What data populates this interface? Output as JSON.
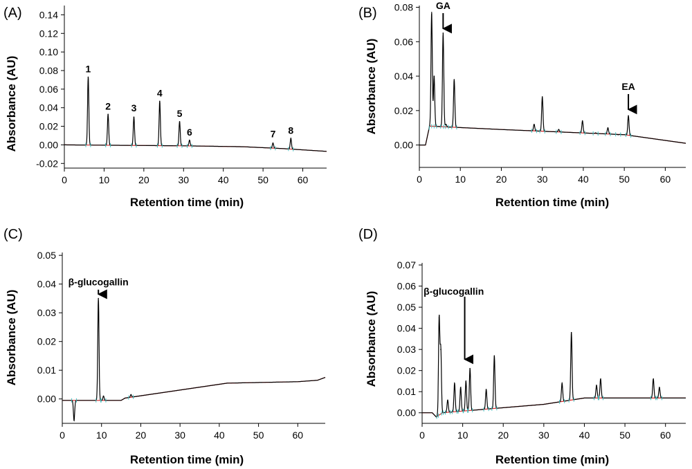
{
  "chart_data": [
    {
      "panel": "(A)",
      "type": "line",
      "xlabel": "Retention time (min)",
      "ylabel": "Absorbance (AU)",
      "xlim": [
        0,
        66
      ],
      "ylim": [
        -0.025,
        0.15
      ],
      "xticks": [
        0,
        10,
        20,
        30,
        40,
        50,
        60
      ],
      "yticks": [
        -0.02,
        0.0,
        0.02,
        0.04,
        0.06,
        0.08,
        0.1,
        0.12,
        0.14
      ],
      "ytick_labels": [
        "-0.02",
        "0.00",
        "0.02",
        "0.04",
        "0.06",
        "0.08",
        "0.10",
        "0.12",
        "0.14"
      ],
      "baseline": [
        [
          0,
          0.0
        ],
        [
          30,
          -0.001
        ],
        [
          45,
          -0.002
        ],
        [
          55,
          -0.004
        ],
        [
          66,
          -0.007
        ]
      ],
      "peaks": [
        {
          "x": 6.0,
          "y": 0.073,
          "label": "1"
        },
        {
          "x": 11.0,
          "y": 0.033,
          "label": "2"
        },
        {
          "x": 17.5,
          "y": 0.03,
          "label": "3"
        },
        {
          "x": 24.0,
          "y": 0.047,
          "label": "4"
        },
        {
          "x": 29.0,
          "y": 0.025,
          "label": "5"
        },
        {
          "x": 31.5,
          "y": 0.005,
          "label": "6"
        },
        {
          "x": 52.5,
          "y": 0.002,
          "label": "7"
        },
        {
          "x": 57.0,
          "y": 0.007,
          "label": "8"
        }
      ],
      "annotations": [
        {
          "text": "1",
          "x": 6.0,
          "y": 0.078
        },
        {
          "text": "2",
          "x": 11.0,
          "y": 0.038
        },
        {
          "text": "3",
          "x": 17.5,
          "y": 0.036
        },
        {
          "text": "4",
          "x": 24.0,
          "y": 0.052
        },
        {
          "text": "5",
          "x": 29.0,
          "y": 0.03
        },
        {
          "text": "6",
          "x": 31.5,
          "y": 0.01
        },
        {
          "text": "7",
          "x": 52.5,
          "y": 0.008
        },
        {
          "text": "8",
          "x": 57.0,
          "y": 0.012
        }
      ]
    },
    {
      "panel": "(B)",
      "type": "line",
      "xlabel": "Retention time (min)",
      "ylabel": "Absorbance (AU)",
      "xlim": [
        0,
        65
      ],
      "ylim": [
        -0.013,
        0.081
      ],
      "xticks": [
        0,
        10,
        20,
        30,
        40,
        50,
        60
      ],
      "yticks": [
        0.0,
        0.02,
        0.04,
        0.06,
        0.08
      ],
      "ytick_labels": [
        "0.00",
        "0.02",
        "0.04",
        "0.06",
        "0.08"
      ],
      "baseline": [
        [
          0,
          0.0
        ],
        [
          1.5,
          0.0
        ],
        [
          2.5,
          0.011
        ],
        [
          20,
          0.009
        ],
        [
          50,
          0.006
        ],
        [
          65,
          0.001
        ]
      ],
      "peaks": [
        {
          "x": 3.0,
          "y": 0.077
        },
        {
          "x": 3.6,
          "y": 0.04
        },
        {
          "x": 5.8,
          "y": 0.065
        },
        {
          "x": 6.5,
          "y": 0.012
        },
        {
          "x": 8.5,
          "y": 0.038
        },
        {
          "x": 28.0,
          "y": 0.012
        },
        {
          "x": 30.0,
          "y": 0.028
        },
        {
          "x": 34.0,
          "y": 0.009
        },
        {
          "x": 39.8,
          "y": 0.014
        },
        {
          "x": 43.0,
          "y": 0.007
        },
        {
          "x": 46.0,
          "y": 0.01
        },
        {
          "x": 48.5,
          "y": 0.006
        },
        {
          "x": 51.0,
          "y": 0.017
        }
      ],
      "annotations": [
        {
          "text": "GA",
          "x": 5.8,
          "y": 0.079,
          "arrow_to": 0.066
        },
        {
          "text": "EA",
          "x": 51.0,
          "y": 0.032,
          "arrow_to": 0.019
        }
      ]
    },
    {
      "panel": "(C)",
      "type": "line",
      "xlabel": "Retention time (min)",
      "ylabel": "Absorbance (AU)",
      "xlim": [
        0,
        67
      ],
      "ylim": [
        -0.0085,
        0.051
      ],
      "xticks": [
        0,
        10,
        20,
        30,
        40,
        50,
        60
      ],
      "yticks": [
        0.0,
        0.01,
        0.02,
        0.03,
        0.04,
        0.05
      ],
      "ytick_labels": [
        "0.00",
        "0.01",
        "0.02",
        "0.03",
        "0.04",
        "0.05"
      ],
      "baseline": [
        [
          0,
          -0.0005
        ],
        [
          15,
          -0.0005
        ],
        [
          16,
          0.0003
        ],
        [
          42,
          0.0055
        ],
        [
          60,
          0.006
        ],
        [
          65,
          0.0065
        ],
        [
          67,
          0.0075
        ]
      ],
      "peaks": [
        {
          "x": 3.0,
          "y": -0.0075
        },
        {
          "x": 9.2,
          "y": 0.035
        },
        {
          "x": 10.5,
          "y": 0.001
        },
        {
          "x": 17.5,
          "y": 0.0015
        }
      ],
      "annotations": [
        {
          "text": "β-glucogallin",
          "x": 9.2,
          "y": 0.0395,
          "arrow_to": 0.0355
        }
      ]
    },
    {
      "panel": "(D)",
      "type": "line",
      "xlabel": "Retention time (min)",
      "ylabel": "Absorbance (AU)",
      "xlim": [
        0,
        65
      ],
      "ylim": [
        -0.005,
        0.071
      ],
      "xticks": [
        0,
        10,
        20,
        30,
        40,
        50,
        60
      ],
      "yticks": [
        0.0,
        0.01,
        0.02,
        0.03,
        0.04,
        0.05,
        0.06,
        0.07
      ],
      "ytick_labels": [
        "0.00",
        "0.01",
        "0.02",
        "0.03",
        "0.04",
        "0.05",
        "0.06",
        "0.07"
      ],
      "baseline": [
        [
          0,
          0.0
        ],
        [
          2.5,
          0.0
        ],
        [
          3.5,
          -0.002
        ],
        [
          5,
          0.0
        ],
        [
          30,
          0.004
        ],
        [
          40,
          0.007
        ],
        [
          50,
          0.007
        ],
        [
          65,
          0.007
        ]
      ],
      "peaks": [
        {
          "x": 4.2,
          "y": 0.045
        },
        {
          "x": 4.6,
          "y": 0.03
        },
        {
          "x": 6.3,
          "y": 0.006
        },
        {
          "x": 8.0,
          "y": 0.014
        },
        {
          "x": 9.5,
          "y": 0.012
        },
        {
          "x": 10.8,
          "y": 0.015
        },
        {
          "x": 11.8,
          "y": 0.021
        },
        {
          "x": 15.8,
          "y": 0.011
        },
        {
          "x": 17.8,
          "y": 0.027
        },
        {
          "x": 34.5,
          "y": 0.014
        },
        {
          "x": 36.8,
          "y": 0.038
        },
        {
          "x": 43.0,
          "y": 0.013
        },
        {
          "x": 44.0,
          "y": 0.016
        },
        {
          "x": 57.0,
          "y": 0.016
        },
        {
          "x": 58.5,
          "y": 0.012
        }
      ],
      "annotations": [
        {
          "text": "β-glucogallin",
          "x": 7.8,
          "y": 0.056,
          "arrow_x": 10.5,
          "arrow_from": 0.055,
          "arrow_to": 0.024
        }
      ]
    }
  ]
}
